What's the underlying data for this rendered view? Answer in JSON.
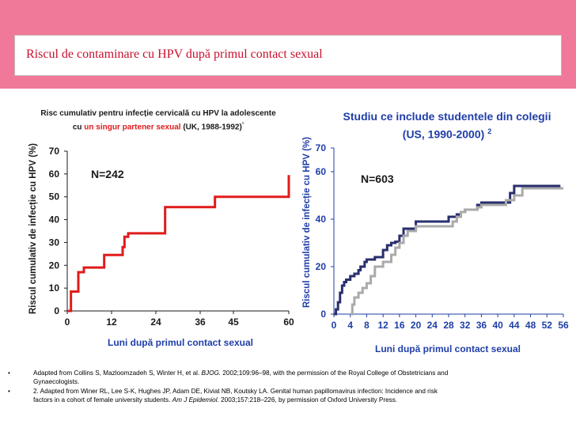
{
  "header": {
    "title": "Riscul de contaminare cu HPV după primul contact sexual",
    "band_color": "#f07898",
    "title_color": "#c8102e"
  },
  "colors": {
    "red": "#e01b1b",
    "navy": "#2a2f6e",
    "gray": "#aaaaaa",
    "label_blue": "#1f3ea8",
    "text_dark": "#1a1a1a"
  },
  "charts": {
    "left": {
      "subtitle_parts": [
        "Risc cumulativ pentru infecție cervicală cu HPV la adolescente",
        "cu",
        "un singur partener sexual",
        "(UK, 1988-1992)",
        "¹"
      ],
      "annotation": "N=242"
    },
    "right": {
      "title": "Studiu ce include studentele din colegii (US, 1990-2000)",
      "title_sup": "2",
      "annotation": "N=603"
    }
  },
  "chart_data": [
    {
      "type": "line",
      "step": true,
      "title": "Risc cumulativ pentru infecție cervicală cu HPV la adolescente cu un singur partener sexual (UK, 1988-1992)",
      "xlabel": "Luni după primul contact sexual",
      "ylabel": "Riscul cumulativ de infecție cu HPV (%)",
      "xlim": [
        0,
        60
      ],
      "ylim": [
        0,
        70
      ],
      "xticks": [
        "0",
        "12",
        "24",
        "36",
        "45",
        "60"
      ],
      "yticks": [
        "0",
        "10",
        "20",
        "30",
        "40",
        "50",
        "60",
        "70"
      ],
      "grid": false,
      "series": [
        {
          "color": "#e01b1b",
          "x": [
            0,
            1,
            3,
            4.5,
            10,
            15,
            15.5,
            16.5,
            17.5,
            26.5,
            40,
            60
          ],
          "y": [
            0,
            8.5,
            17,
            19,
            24.5,
            28,
            32.5,
            34,
            34,
            45.5,
            50,
            59.5
          ]
        }
      ]
    },
    {
      "type": "line",
      "step": true,
      "title": "Studiu ce include studentele din colegii (US, 1990-2000)",
      "xlabel": "Luni după primul contact sexual",
      "ylabel": "Riscul cumulativ de infecție cu HPV (%)",
      "xlim": [
        0,
        56
      ],
      "ylim": [
        0,
        70
      ],
      "xticks": [
        "0",
        "4",
        "8",
        "12",
        "16",
        "20",
        "24",
        "28",
        "32",
        "36",
        "40",
        "44",
        "48",
        "52",
        "56"
      ],
      "yticks": [
        "0",
        "20",
        "40",
        "60",
        "70"
      ],
      "grid": false,
      "series": [
        {
          "color": "#2a2f6e",
          "x": [
            0,
            0.5,
            1,
            1.5,
            2,
            2.5,
            3,
            4,
            5,
            6,
            6.5,
            7.5,
            8,
            10,
            12,
            13,
            14,
            15,
            16,
            17,
            20,
            23,
            25,
            26,
            28,
            30,
            31,
            32,
            35,
            36,
            40,
            42,
            43,
            44,
            48,
            52,
            55
          ],
          "y": [
            0,
            2,
            5,
            9,
            12,
            13.5,
            14.5,
            16,
            17,
            18.5,
            20,
            22,
            23,
            24,
            27,
            29,
            30,
            30.5,
            33,
            36,
            39,
            39,
            39,
            39,
            41,
            42,
            43,
            44,
            46,
            47,
            47,
            47,
            51,
            54,
            54,
            54,
            53.5
          ]
        },
        {
          "color": "#aaaaaa",
          "x": [
            4,
            4.5,
            5,
            6,
            7,
            8,
            9,
            10,
            12,
            14,
            15,
            16,
            17,
            18,
            20,
            23,
            25,
            28,
            29,
            30,
            31,
            32,
            35,
            36,
            40,
            42,
            44,
            46,
            48,
            52,
            56
          ],
          "y": [
            0,
            4,
            7,
            9,
            11,
            13,
            16,
            20,
            22,
            25,
            28,
            30,
            33,
            35,
            37,
            37,
            37,
            37,
            39,
            41,
            43,
            44,
            45,
            46,
            46,
            48,
            50,
            53,
            53,
            53,
            53
          ]
        }
      ]
    }
  ],
  "references": [
    {
      "bullet": "•",
      "before": "Adapted from Collins S, Mazloomzadeh S, Winter H, et al.",
      "journal": "BJOG.",
      "after": "2002;109:96–98, with the permission of the Royal College of Obstetricians and Gynaecologists."
    },
    {
      "bullet": "•",
      "before": "2. Adapted from Winer RL, Lee S-K, Hughes JP, Adam DE, Kiviat NB, Koutsky LA. Genital human papillomavirus infection: Incidence and risk factors in a cohort of female university students.",
      "journal": "Am J Epidemiol.",
      "after": "2003;157:218–226, by permission of Oxford University Press."
    }
  ]
}
